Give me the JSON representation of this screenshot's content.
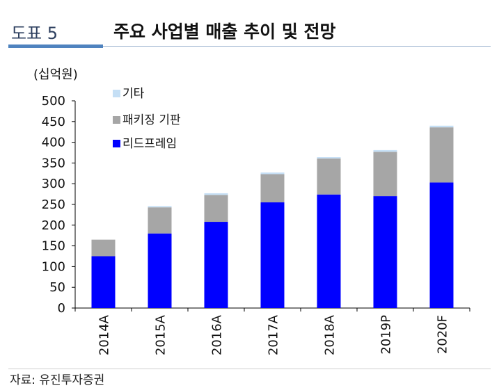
{
  "header": {
    "figure_no": "도표 5",
    "title": "주요 사업별 매출 추이 및 전망"
  },
  "chart_data": {
    "type": "bar",
    "stacked": true,
    "title": "주요 사업별 매출 추이 및 전망",
    "unit_label": "(십억원)",
    "categories": [
      "2014A",
      "2015A",
      "2016A",
      "2017A",
      "2018A",
      "2019P",
      "2020F"
    ],
    "series": [
      {
        "name": "리드프레임",
        "color": "#0000ff",
        "values": [
          125,
          180,
          208,
          255,
          274,
          270,
          303
        ]
      },
      {
        "name": "패키징 기판",
        "color": "#a6a6a6",
        "values": [
          40,
          63,
          65,
          68,
          87,
          107,
          133
        ]
      },
      {
        "name": "기타",
        "color": "#c5dff5",
        "values": [
          0,
          3,
          4,
          4,
          3,
          4,
          4
        ]
      }
    ],
    "legend_order": [
      "기타",
      "패키징 기판",
      "리드프레임"
    ],
    "legend_position": "top-left",
    "ylim": [
      0,
      500
    ],
    "yticks": [
      0,
      50,
      100,
      150,
      200,
      250,
      300,
      350,
      400,
      450,
      500
    ],
    "grid": false,
    "xlabel": "",
    "ylabel": ""
  },
  "footer": {
    "source": "자료: 유진투자증권"
  }
}
